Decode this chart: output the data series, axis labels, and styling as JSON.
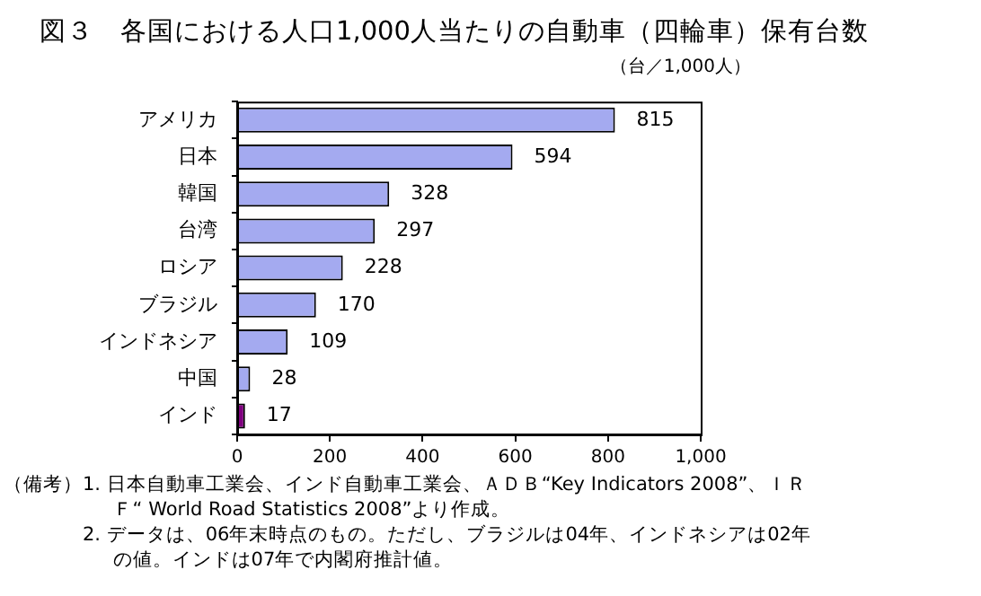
{
  "chart_data": {
    "type": "bar",
    "orientation": "horizontal",
    "title": "図３　各国における人口1,000人当たりの自動車（四輪車）保有台数",
    "xlabel": "（台／1,000人）",
    "categories": [
      "アメリカ",
      "日本",
      "韓国",
      "台湾",
      "ロシア",
      "ブラジル",
      "インドネシア",
      "中国",
      "インド"
    ],
    "values": [
      815,
      594,
      328,
      297,
      228,
      170,
      109,
      28,
      17
    ],
    "colors": [
      "#a4aaf0",
      "#a4aaf0",
      "#a4aaf0",
      "#a4aaf0",
      "#a4aaf0",
      "#a4aaf0",
      "#a4aaf0",
      "#a4aaf0",
      "#800080"
    ],
    "xlim": [
      0,
      1000
    ],
    "xticks": [
      0,
      200,
      400,
      600,
      800,
      {
        "value": 1000,
        "label": "1,000"
      }
    ],
    "grid": false,
    "data_labels": true,
    "legend": false,
    "annotations": [
      "（備考）",
      "1.  日本自動車工業会、インド自動車工業会、ＡＤＢ“Key Indicators 2008”、ＩＲＦ“ World Road Statistics 2008”より作成。",
      "2.  データは、06年末時点のもの。ただし、ブラジルは04年、インドネシアは02年の値。インドは07年で内閣府推計値。"
    ]
  }
}
